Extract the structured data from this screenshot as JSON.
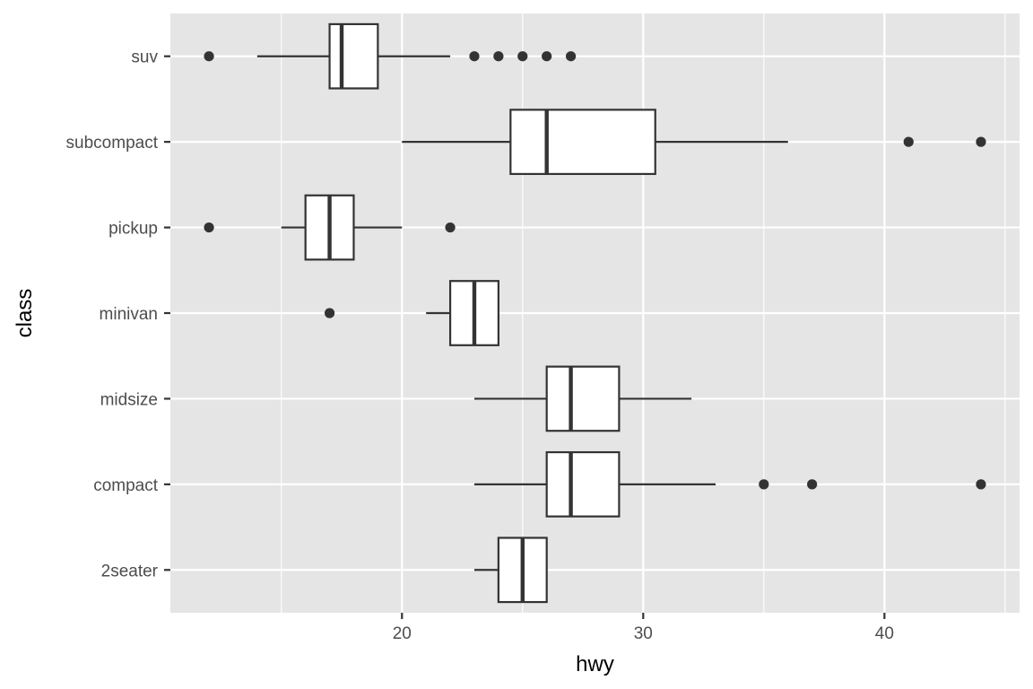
{
  "chart_data": {
    "type": "boxplot",
    "orientation": "horizontal",
    "xlabel": "hwy",
    "ylabel": "class",
    "xlim": [
      10.4,
      45.6
    ],
    "x_ticks": [
      20,
      30,
      40
    ],
    "x_minor_ticks": [
      15,
      25,
      35,
      45
    ],
    "grid": true,
    "categories": [
      "2seater",
      "compact",
      "midsize",
      "minivan",
      "pickup",
      "subcompact",
      "suv"
    ],
    "boxes": [
      {
        "category": "2seater",
        "q1": 24,
        "median": 25,
        "q3": 26,
        "whisker_low": 23,
        "whisker_high": 26,
        "outliers": []
      },
      {
        "category": "compact",
        "q1": 26,
        "median": 27,
        "q3": 29,
        "whisker_low": 23,
        "whisker_high": 33,
        "outliers": [
          35,
          37,
          44
        ]
      },
      {
        "category": "midsize",
        "q1": 26,
        "median": 27,
        "q3": 29,
        "whisker_low": 23,
        "whisker_high": 32,
        "outliers": []
      },
      {
        "category": "minivan",
        "q1": 22,
        "median": 23,
        "q3": 24,
        "whisker_low": 21,
        "whisker_high": 24,
        "outliers": [
          17
        ]
      },
      {
        "category": "pickup",
        "q1": 16,
        "median": 17,
        "q3": 18,
        "whisker_low": 15,
        "whisker_high": 20,
        "outliers": [
          12,
          22
        ]
      },
      {
        "category": "subcompact",
        "q1": 24.5,
        "median": 26,
        "q3": 30.5,
        "whisker_low": 20,
        "whisker_high": 36,
        "outliers": [
          41,
          44
        ]
      },
      {
        "category": "suv",
        "q1": 17,
        "median": 17.5,
        "q3": 19,
        "whisker_low": 14,
        "whisker_high": 22,
        "outliers": [
          12,
          23,
          24,
          25,
          26,
          27
        ]
      }
    ],
    "colors": {
      "panel_background": "#e5e5e5",
      "grid": "#ffffff",
      "box_fill": "#ffffff",
      "box_stroke": "#333333",
      "point": "#333333",
      "tick_label": "#4d4d4d",
      "axis_title": "#000000"
    }
  }
}
